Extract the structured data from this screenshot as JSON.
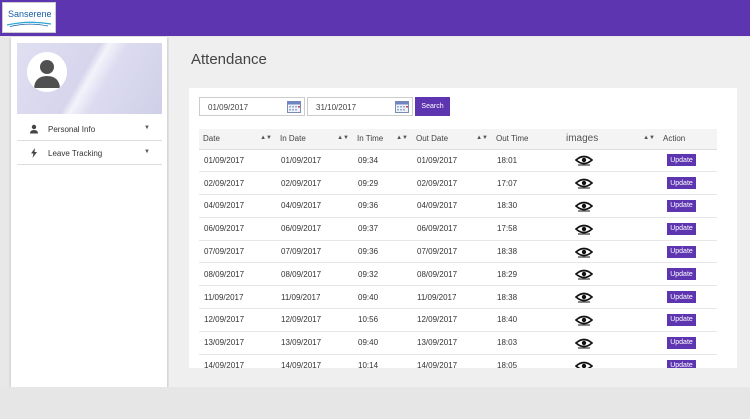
{
  "brand": {
    "logo_text": "Sanserene",
    "accent": "#5e35b1"
  },
  "sidebar": {
    "items": [
      {
        "label": "Personal Info",
        "icon": "person-icon"
      },
      {
        "label": "Leave Tracking",
        "icon": "lightning-icon"
      }
    ]
  },
  "page": {
    "title": "Attendance"
  },
  "filters": {
    "from_date": "01/09/2017",
    "to_date": "31/10/2017",
    "search_label": "Search"
  },
  "table": {
    "headers": [
      "Date",
      "In Date",
      "In Time",
      "Out Date",
      "Out Time",
      "images",
      "Action"
    ],
    "action_label": "Update",
    "rows": [
      [
        "01/09/2017",
        "01/09/2017",
        "09:34",
        "01/09/2017",
        "18:01"
      ],
      [
        "02/09/2017",
        "02/09/2017",
        "09:29",
        "02/09/2017",
        "17:07"
      ],
      [
        "04/09/2017",
        "04/09/2017",
        "09:36",
        "04/09/2017",
        "18:30"
      ],
      [
        "06/09/2017",
        "06/09/2017",
        "09:37",
        "06/09/2017",
        "17:58"
      ],
      [
        "07/09/2017",
        "07/09/2017",
        "09:36",
        "07/09/2017",
        "18:38"
      ],
      [
        "08/09/2017",
        "08/09/2017",
        "09:32",
        "08/09/2017",
        "18:29"
      ],
      [
        "11/09/2017",
        "11/09/2017",
        "09:40",
        "11/09/2017",
        "18:38"
      ],
      [
        "12/09/2017",
        "12/09/2017",
        "10:56",
        "12/09/2017",
        "18:40"
      ],
      [
        "13/09/2017",
        "13/09/2017",
        "09:40",
        "13/09/2017",
        "18:03"
      ],
      [
        "14/09/2017",
        "14/09/2017",
        "10:14",
        "14/09/2017",
        "18:05"
      ]
    ]
  }
}
